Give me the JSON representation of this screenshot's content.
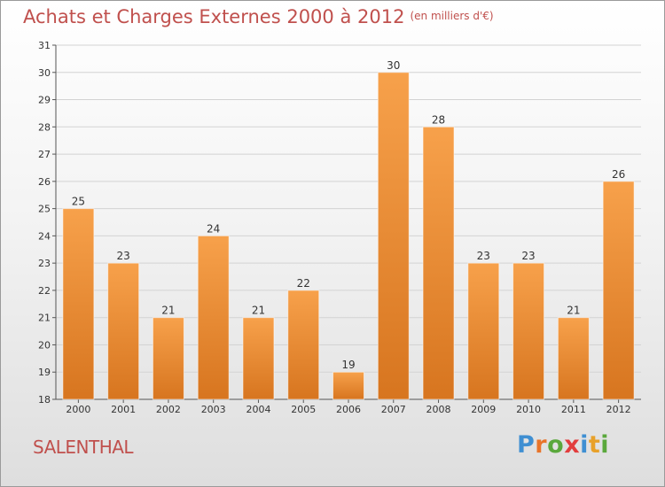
{
  "title": "Achats et Charges Externes 2000 à 2012",
  "subtitle": "(en milliers d'€)",
  "town": "SALENTHAL",
  "logo": {
    "text": "Proxiti",
    "letters": [
      {
        "ch": "P",
        "color": "#3f8fd2"
      },
      {
        "ch": "r",
        "color": "#e8742a"
      },
      {
        "ch": "o",
        "color": "#5aa83c"
      },
      {
        "ch": "x",
        "color": "#e23d3d"
      },
      {
        "ch": "i",
        "color": "#3f8fd2"
      },
      {
        "ch": "t",
        "color": "#e8a12a"
      },
      {
        "ch": "i",
        "color": "#5aa83c"
      }
    ]
  },
  "colors": {
    "bar_light": "#f7a14b",
    "bar_dark": "#d7751f",
    "title": "#c0504d"
  },
  "chart_data": {
    "type": "bar",
    "title": "Achats et Charges Externes 2000 à 2012",
    "subtitle": "(en milliers d'€)",
    "categories": [
      "2000",
      "2001",
      "2002",
      "2003",
      "2004",
      "2005",
      "2006",
      "2007",
      "2008",
      "2009",
      "2010",
      "2011",
      "2012"
    ],
    "values": [
      25,
      23,
      21,
      24,
      21,
      22,
      19,
      30,
      28,
      23,
      23,
      21,
      26
    ],
    "ylim": [
      18,
      31
    ],
    "yticks": [
      18,
      19,
      20,
      21,
      22,
      23,
      24,
      25,
      26,
      27,
      28,
      29,
      30,
      31
    ],
    "grid": true,
    "xlabel": "",
    "ylabel": ""
  }
}
